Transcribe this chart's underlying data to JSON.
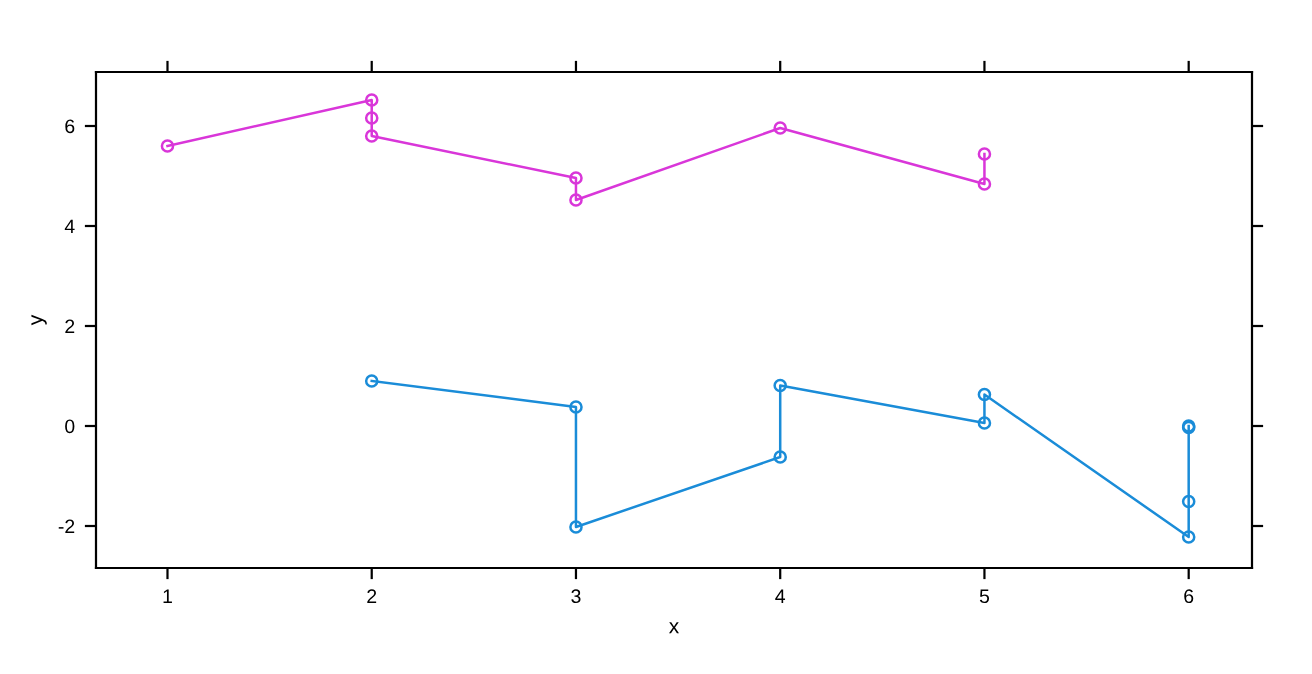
{
  "chart_data": {
    "type": "line",
    "xlabel": "x",
    "ylabel": "y",
    "xlim": [
      0.65,
      6.31
    ],
    "ylim": [
      -2.84,
      7.08
    ],
    "xticks": [
      1,
      2,
      3,
      4,
      5,
      6
    ],
    "yticks": [
      -2,
      0,
      2,
      4,
      6
    ],
    "grid": false,
    "legend": false,
    "marker": "circle",
    "line_style": "solid",
    "series": [
      {
        "color": "#d936d9",
        "x": [
          1,
          2,
          2,
          2,
          3,
          3,
          4,
          5,
          5
        ],
        "values": [
          5.6,
          6.52,
          6.16,
          5.8,
          4.96,
          4.52,
          5.96,
          4.84,
          5.44
        ]
      },
      {
        "color": "#1a8cd8",
        "x": [
          2,
          3,
          3,
          4,
          4,
          5,
          5,
          6,
          6,
          6,
          6
        ],
        "values": [
          0.9,
          0.38,
          -2.02,
          -0.62,
          0.81,
          0.06,
          0.63,
          -2.22,
          -1.51,
          -0.03,
          0.0
        ]
      }
    ]
  }
}
